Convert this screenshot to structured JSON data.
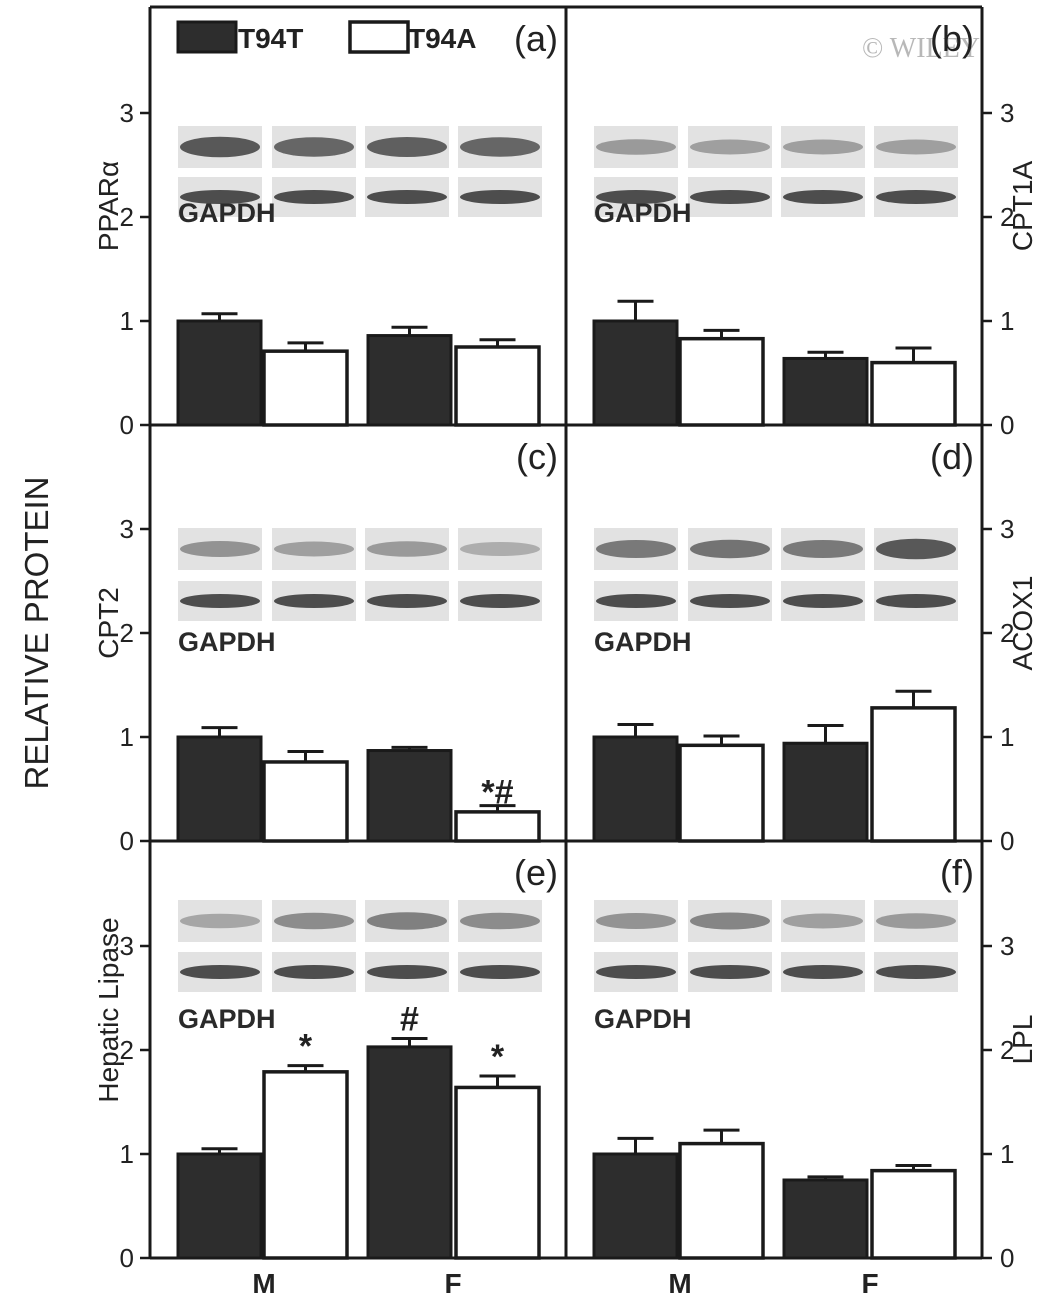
{
  "figure": {
    "ylabel": "RELATIVE PROTEIN",
    "groups": [
      "M",
      "F"
    ],
    "series_names": [
      "T94T",
      "T94A"
    ],
    "gapdh_label": "GAPDH",
    "watermark": "© WILEY",
    "colors": {
      "T94T": "#2d2d2d",
      "T94A": "#ffffff",
      "axes": "#1a1a1a"
    }
  },
  "chart_data": [
    {
      "type": "bar",
      "panel": "(a)",
      "protein": "PPARα",
      "categories": [
        "M",
        "F"
      ],
      "series": [
        {
          "name": "T94T",
          "values": [
            1.0,
            0.86
          ],
          "errors": [
            0.07,
            0.08
          ]
        },
        {
          "name": "T94A",
          "values": [
            0.71,
            0.75
          ],
          "errors": [
            0.08,
            0.07
          ]
        }
      ],
      "ylim": [
        0,
        3.9
      ],
      "yticks": [
        0,
        1,
        2,
        3
      ],
      "axis_side": "left",
      "annotations": [],
      "blot_intensity": [
        0.85,
        0.75,
        0.8,
        0.75
      ]
    },
    {
      "type": "bar",
      "panel": "(b)",
      "protein": "CPT1A",
      "categories": [
        "M",
        "F"
      ],
      "series": [
        {
          "name": "T94T",
          "values": [
            1.0,
            0.64
          ],
          "errors": [
            0.19,
            0.06
          ]
        },
        {
          "name": "T94A",
          "values": [
            0.83,
            0.6
          ],
          "errors": [
            0.08,
            0.14
          ]
        }
      ],
      "ylim": [
        0,
        3.9
      ],
      "yticks": [
        0,
        1,
        2,
        3
      ],
      "axis_side": "right",
      "annotations": [],
      "blot_intensity": [
        0.35,
        0.3,
        0.3,
        0.3
      ]
    },
    {
      "type": "bar",
      "panel": "(c)",
      "protein": "CPT2",
      "categories": [
        "M",
        "F"
      ],
      "series": [
        {
          "name": "T94T",
          "values": [
            1.0,
            0.87
          ],
          "errors": [
            0.09,
            0.03
          ]
        },
        {
          "name": "T94A",
          "values": [
            0.76,
            0.28
          ],
          "errors": [
            0.1,
            0.06
          ]
        }
      ],
      "ylim": [
        0,
        3.9
      ],
      "yticks": [
        0,
        1,
        2,
        3
      ],
      "axis_side": "left",
      "annotations": [
        {
          "group": 1,
          "series": 1,
          "text": "*#"
        }
      ],
      "blot_intensity": [
        0.4,
        0.3,
        0.35,
        0.2
      ]
    },
    {
      "type": "bar",
      "panel": "(d)",
      "protein": "ACOX1",
      "categories": [
        "M",
        "F"
      ],
      "series": [
        {
          "name": "T94T",
          "values": [
            1.0,
            0.94
          ],
          "errors": [
            0.12,
            0.17
          ]
        },
        {
          "name": "T94A",
          "values": [
            0.92,
            1.28
          ],
          "errors": [
            0.09,
            0.16
          ]
        }
      ],
      "ylim": [
        0,
        3.9
      ],
      "yticks": [
        0,
        1,
        2,
        3
      ],
      "axis_side": "right",
      "annotations": [],
      "blot_intensity": [
        0.6,
        0.65,
        0.6,
        0.85
      ]
    },
    {
      "type": "bar",
      "panel": "(e)",
      "protein": "Hepatic Lipase",
      "categories": [
        "M",
        "F"
      ],
      "series": [
        {
          "name": "T94T",
          "values": [
            1.0,
            2.03
          ],
          "errors": [
            0.05,
            0.08
          ]
        },
        {
          "name": "T94A",
          "values": [
            1.79,
            1.64
          ],
          "errors": [
            0.06,
            0.11
          ]
        }
      ],
      "ylim": [
        0,
        3.9
      ],
      "yticks": [
        0,
        1,
        2,
        3
      ],
      "axis_side": "left",
      "annotations": [
        {
          "group": 0,
          "series": 1,
          "text": "*"
        },
        {
          "group": 1,
          "series": 0,
          "text": "#"
        },
        {
          "group": 1,
          "series": 1,
          "text": "*"
        }
      ],
      "blot_intensity": [
        0.25,
        0.45,
        0.55,
        0.45
      ]
    },
    {
      "type": "bar",
      "panel": "(f)",
      "protein": "LPL",
      "categories": [
        "M",
        "F"
      ],
      "series": [
        {
          "name": "T94T",
          "values": [
            1.0,
            0.75
          ],
          "errors": [
            0.15,
            0.03
          ]
        },
        {
          "name": "T94A",
          "values": [
            1.1,
            0.84
          ],
          "errors": [
            0.13,
            0.05
          ]
        }
      ],
      "ylim": [
        0,
        3.9
      ],
      "yticks": [
        0,
        1,
        2,
        3
      ],
      "axis_side": "right",
      "annotations": [],
      "blot_intensity": [
        0.4,
        0.5,
        0.3,
        0.35
      ]
    }
  ]
}
